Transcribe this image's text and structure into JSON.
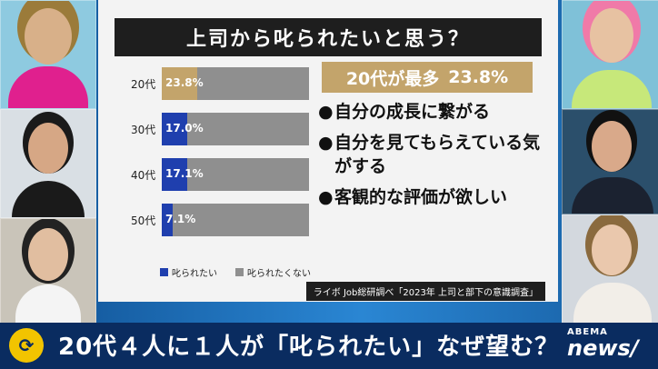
{
  "chart_data": {
    "type": "bar",
    "title": "上司から叱られたいと思う？",
    "categories": [
      "20代",
      "30代",
      "40代",
      "50代"
    ],
    "series": [
      {
        "name": "叱られたい",
        "values": [
          23.8,
          17.0,
          17.1,
          7.1
        ],
        "color": "#c3a46b",
        "highlight_color": "#1f3fae"
      },
      {
        "name": "叱られたくない",
        "values": [
          76.2,
          83.0,
          82.9,
          92.9
        ],
        "color": "#8f8f8f"
      }
    ],
    "value_labels": [
      "23.8%",
      "17.0%",
      "17.1%",
      "7.1%"
    ],
    "highlight": "20代が最多",
    "highlight_value": "23.8%",
    "points": [
      "自分の成長に繋がる",
      "自分を見てもらえている気がする",
      "客観的な評価が欲しい"
    ],
    "source": "ライボ Job総研調べ「2023年 上司と部下の意識調査」"
  },
  "banner": {
    "text": "20代４人に１人が「叱られたい」なぜ望む？"
  },
  "logo": {
    "top": "ABEMA",
    "bottom": "news/"
  },
  "colors": {
    "panel": "#f3f3f3",
    "title_bg": "#1e1e1e",
    "banner": "#0a2c60",
    "gold": "#c3a46b",
    "blue": "#1f3fae"
  }
}
